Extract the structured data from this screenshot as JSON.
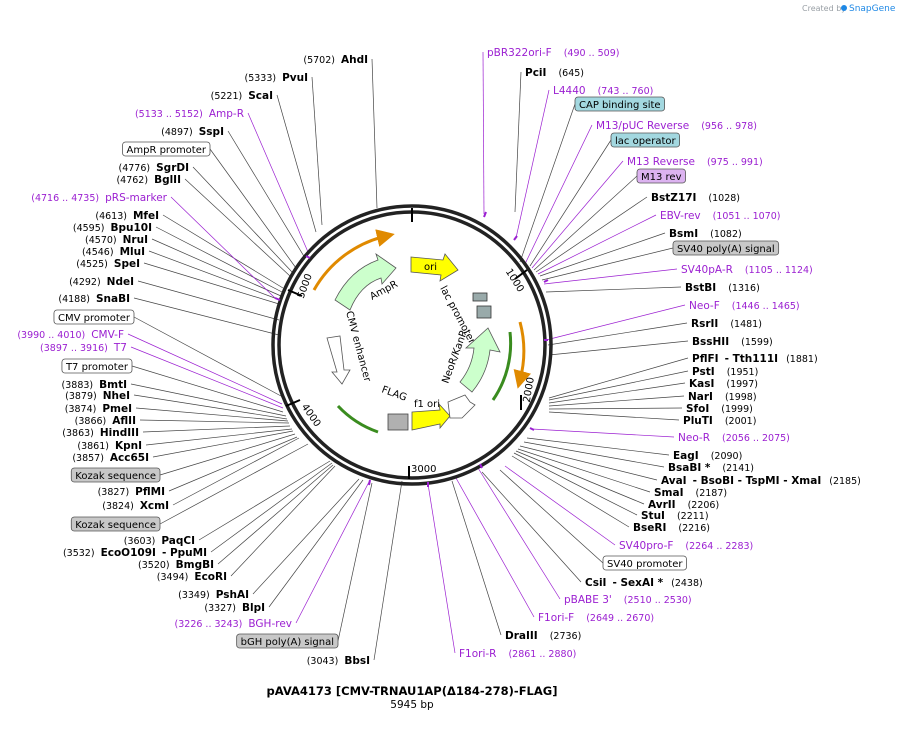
{
  "credit": {
    "prefix": "Created by",
    "brand": "SnapGene"
  },
  "map": {
    "title": "pAVA4173 [CMV-TRNAU1AP(Δ184-278)-FLAG]",
    "length": "5945 bp"
  },
  "ticks": [
    "1000",
    "2000",
    "3000",
    "4000",
    "5000"
  ],
  "features": [
    {
      "name": "ori",
      "color": "#ffff00"
    },
    {
      "name": "lac promoter",
      "color": "#ffffff"
    },
    {
      "name": "NeoR/KanR",
      "color": "#ccffcc"
    },
    {
      "name": "f1 ori",
      "color": "#ffff00"
    },
    {
      "name": "FLAG",
      "color": "#b0b0b0"
    },
    {
      "name": "CMV enhancer",
      "color": "#ffffff"
    },
    {
      "name": "AmpR",
      "color": "#ccffcc"
    }
  ],
  "labels": [
    {
      "kind": "enzyme",
      "name": "PciI",
      "pos": "(645)"
    },
    {
      "kind": "primer",
      "name": "L4440",
      "pos": "(743 .. 760)"
    },
    {
      "kind": "feature",
      "name": "CAP binding site",
      "bg": "#a3d8e0"
    },
    {
      "kind": "primer",
      "name": "M13/pUC Reverse",
      "pos": "(956 .. 978)"
    },
    {
      "kind": "feature",
      "name": "lac operator",
      "bg": "#a3d8e0"
    },
    {
      "kind": "primer",
      "name": "M13 Reverse",
      "pos": "(975 .. 991)"
    },
    {
      "kind": "feature",
      "name": "M13 rev",
      "bg": "#dcb3f0"
    },
    {
      "kind": "enzyme",
      "name": "BstZ17I",
      "pos": "(1028)"
    },
    {
      "kind": "primer",
      "name": "EBV-rev",
      "pos": "(1051 .. 1070)"
    },
    {
      "kind": "enzyme",
      "name": "BsmI",
      "pos": "(1082)"
    },
    {
      "kind": "feature",
      "name": "SV40 poly(A) signal",
      "bg": "#c8c8c8"
    },
    {
      "kind": "primer",
      "name": "SV40pA-R",
      "pos": "(1105 .. 1124)"
    },
    {
      "kind": "enzyme",
      "name": "BstBI",
      "pos": "(1316)"
    },
    {
      "kind": "primer",
      "name": "Neo-F",
      "pos": "(1446 .. 1465)"
    },
    {
      "kind": "enzyme",
      "name": "RsrII",
      "pos": "(1481)"
    },
    {
      "kind": "enzyme",
      "name": "BssHII",
      "pos": "(1599)"
    },
    {
      "kind": "enzyme",
      "name": "PflFI",
      "pos": "(1881)",
      "extra": "- Tth111I"
    },
    {
      "kind": "enzyme",
      "name": "PstI",
      "pos": "(1951)"
    },
    {
      "kind": "enzyme",
      "name": "KasI",
      "pos": "(1997)"
    },
    {
      "kind": "enzyme",
      "name": "NarI",
      "pos": "(1998)"
    },
    {
      "kind": "enzyme",
      "name": "SfoI",
      "pos": "(1999)"
    },
    {
      "kind": "enzyme",
      "name": "PluTI",
      "pos": "(2001)"
    },
    {
      "kind": "primer",
      "name": "Neo-R",
      "pos": "(2056 .. 2075)"
    },
    {
      "kind": "enzyme",
      "name": "EagI",
      "pos": "(2090)"
    },
    {
      "kind": "enzyme",
      "name": "BsaBI *",
      "pos": "(2141)"
    },
    {
      "kind": "enzyme",
      "name": "AvaI",
      "pos": "(2185)",
      "extra": "- BsoBI   - TspMI   - XmaI"
    },
    {
      "kind": "enzyme",
      "name": "SmaI",
      "pos": "(2187)"
    },
    {
      "kind": "enzyme",
      "name": "AvrII",
      "pos": "(2206)"
    },
    {
      "kind": "enzyme",
      "name": "StuI",
      "pos": "(2211)"
    },
    {
      "kind": "enzyme",
      "name": "BseRI",
      "pos": "(2216)"
    },
    {
      "kind": "primer",
      "name": "SV40pro-F",
      "pos": "(2264 .. 2283)"
    },
    {
      "kind": "feature",
      "name": "SV40 promoter",
      "bg": "#ffffff"
    },
    {
      "kind": "enzyme",
      "name": "CsiI",
      "pos": "(2438)",
      "extra": "- SexAI *"
    },
    {
      "kind": "primer",
      "name": "pBABE 3'",
      "pos": "(2510 .. 2530)"
    },
    {
      "kind": "primer",
      "name": "F1ori-F",
      "pos": "(2649 .. 2670)"
    },
    {
      "kind": "enzyme",
      "name": "DraIII",
      "pos": "(2736)"
    },
    {
      "kind": "primer",
      "name": "F1ori-R",
      "pos": "(2861 .. 2880)"
    },
    {
      "kind": "enzyme",
      "name": "BbsI",
      "pos": "(3043)"
    },
    {
      "kind": "feature",
      "name": "bGH poly(A) signal",
      "bg": "#c8c8c8"
    },
    {
      "kind": "primer",
      "name": "BGH-rev",
      "pos": "(3226 .. 3243)"
    },
    {
      "kind": "enzyme",
      "name": "BlpI",
      "pos": "(3327)"
    },
    {
      "kind": "enzyme",
      "name": "PshAI",
      "pos": "(3349)"
    },
    {
      "kind": "enzyme",
      "name": "EcoRI",
      "pos": "(3494)"
    },
    {
      "kind": "enzyme",
      "name": "BmgBI",
      "pos": "(3520)"
    },
    {
      "kind": "enzyme",
      "name": "EcoO109I",
      "pos": "(3532)",
      "extra": "- PpuMI"
    },
    {
      "kind": "enzyme",
      "name": "PaqCI",
      "pos": "(3603)"
    },
    {
      "kind": "feature",
      "name": "Kozak sequence",
      "bg": "#c8c8c8"
    },
    {
      "kind": "enzyme",
      "name": "XcmI",
      "pos": "(3824)"
    },
    {
      "kind": "enzyme",
      "name": "PflMI",
      "pos": "(3827)"
    },
    {
      "kind": "feature",
      "name": "Kozak sequence",
      "bg": "#c8c8c8"
    },
    {
      "kind": "enzyme",
      "name": "Acc65I",
      "pos": "(3857)"
    },
    {
      "kind": "enzyme",
      "name": "KpnI",
      "pos": "(3861)"
    },
    {
      "kind": "enzyme",
      "name": "HindIII",
      "pos": "(3863)"
    },
    {
      "kind": "enzyme",
      "name": "AflII",
      "pos": "(3866)"
    },
    {
      "kind": "enzyme",
      "name": "PmeI",
      "pos": "(3874)"
    },
    {
      "kind": "enzyme",
      "name": "NheI",
      "pos": "(3879)"
    },
    {
      "kind": "enzyme",
      "name": "BmtI",
      "pos": "(3883)"
    },
    {
      "kind": "feature",
      "name": "T7 promoter",
      "bg": "#ffffff"
    },
    {
      "kind": "primer",
      "name": "T7",
      "pos": "(3897 .. 3916)"
    },
    {
      "kind": "primer",
      "name": "CMV-F",
      "pos": "(3990 .. 4010)"
    },
    {
      "kind": "feature",
      "name": "CMV promoter",
      "bg": "#ffffff"
    },
    {
      "kind": "enzyme",
      "name": "SnaBI",
      "pos": "(4188)"
    },
    {
      "kind": "enzyme",
      "name": "NdeI",
      "pos": "(4292)"
    },
    {
      "kind": "enzyme",
      "name": "SpeI",
      "pos": "(4525)"
    },
    {
      "kind": "enzyme",
      "name": "MluI",
      "pos": "(4546)"
    },
    {
      "kind": "enzyme",
      "name": "NruI",
      "pos": "(4570)"
    },
    {
      "kind": "enzyme",
      "name": "Bpu10I",
      "pos": "(4595)"
    },
    {
      "kind": "enzyme",
      "name": "MfeI",
      "pos": "(4613)"
    },
    {
      "kind": "primer",
      "name": "pRS-marker",
      "pos": "(4716 .. 4735)"
    },
    {
      "kind": "enzyme",
      "name": "BglII",
      "pos": "(4762)"
    },
    {
      "kind": "enzyme",
      "name": "SgrDI",
      "pos": "(4776)"
    },
    {
      "kind": "feature",
      "name": "AmpR promoter",
      "bg": "#ffffff"
    },
    {
      "kind": "enzyme",
      "name": "SspI",
      "pos": "(4897)"
    },
    {
      "kind": "primer",
      "name": "Amp-R",
      "pos": "(5133 .. 5152)"
    },
    {
      "kind": "enzyme",
      "name": "ScaI",
      "pos": "(5221)"
    },
    {
      "kind": "enzyme",
      "name": "PvuI",
      "pos": "(5333)"
    },
    {
      "kind": "enzyme",
      "name": "AhdI",
      "pos": "(5702)"
    },
    {
      "kind": "primer",
      "name": "pBR322ori-F",
      "pos": "(490 .. 509)"
    }
  ]
}
